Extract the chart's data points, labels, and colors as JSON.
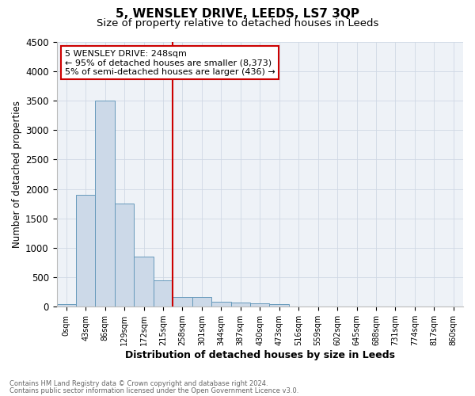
{
  "title": "5, WENSLEY DRIVE, LEEDS, LS7 3QP",
  "subtitle": "Size of property relative to detached houses in Leeds",
  "xlabel": "Distribution of detached houses by size in Leeds",
  "ylabel": "Number of detached properties",
  "footnote1": "Contains HM Land Registry data © Crown copyright and database right 2024.",
  "footnote2": "Contains public sector information licensed under the Open Government Licence v3.0.",
  "bar_labels": [
    "0sqm",
    "43sqm",
    "86sqm",
    "129sqm",
    "172sqm",
    "215sqm",
    "258sqm",
    "301sqm",
    "344sqm",
    "387sqm",
    "430sqm",
    "473sqm",
    "516sqm",
    "559sqm",
    "602sqm",
    "645sqm",
    "688sqm",
    "731sqm",
    "774sqm",
    "817sqm",
    "860sqm"
  ],
  "bar_values": [
    50,
    1900,
    3500,
    1750,
    850,
    450,
    170,
    160,
    90,
    70,
    55,
    50,
    0,
    0,
    0,
    0,
    0,
    0,
    0,
    0,
    0
  ],
  "bar_color": "#ccd9e8",
  "bar_edgecolor": "#6699bb",
  "bar_width": 1.0,
  "ylim": [
    0,
    4500
  ],
  "yticks": [
    0,
    500,
    1000,
    1500,
    2000,
    2500,
    3000,
    3500,
    4000,
    4500
  ],
  "property_line_x": 5.5,
  "property_line_color": "#cc0000",
  "annotation_box_color": "#cc0000",
  "annotation_line1": "5 WENSLEY DRIVE: 248sqm",
  "annotation_line2": "← 95% of detached houses are smaller (8,373)",
  "annotation_line3": "5% of semi-detached houses are larger (436) →",
  "bg_color": "#eef2f7",
  "grid_color": "#d0d8e4",
  "title_fontsize": 11,
  "subtitle_fontsize": 9.5
}
